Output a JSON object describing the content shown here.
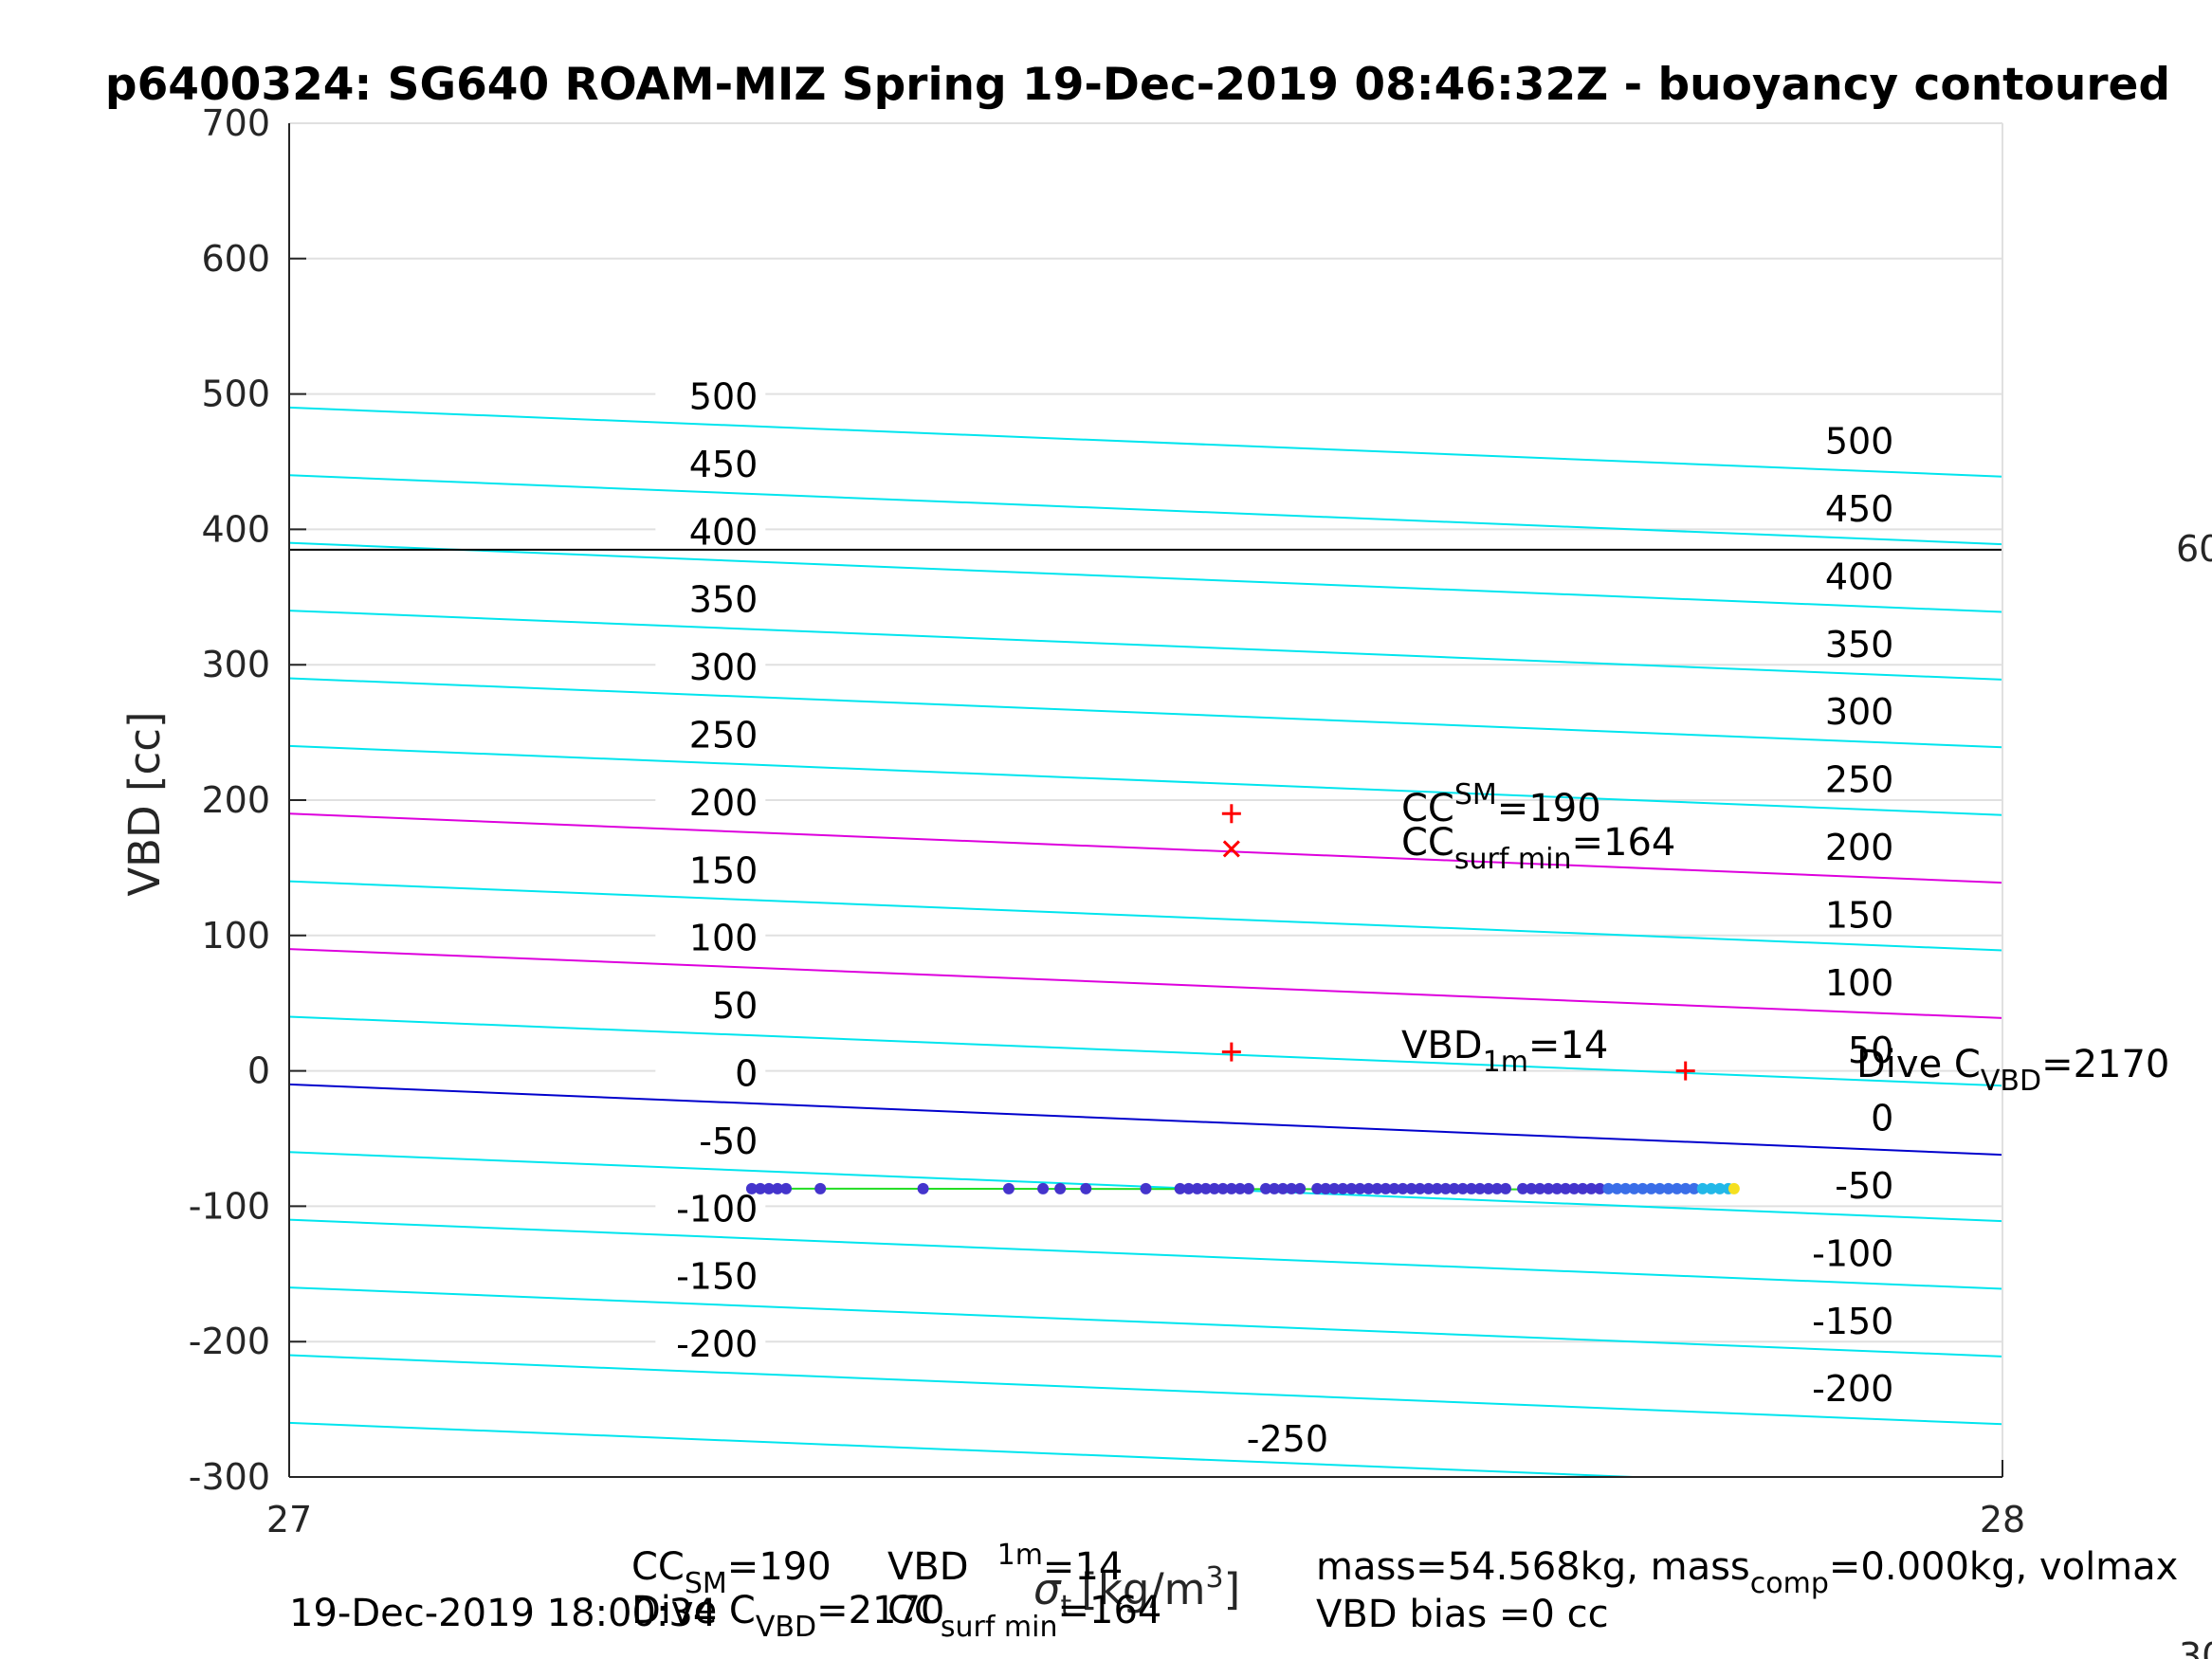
{
  "chart_data": {
    "type": "line",
    "title": "p6400324: SG640 ROAM-MIZ Spring 19-Dec-2019 08:46:32Z - buoyancy contoured",
    "ylabel": "VBD [cc]",
    "xlabel": "σ_t [kg/m^3]",
    "xlabel_parts": {
      "sigma": "σ",
      "sub": "t",
      "units": "[kg/m",
      "sup": "3",
      "close": "]"
    },
    "xlim": [
      27,
      28
    ],
    "ylim": [
      -300,
      700
    ],
    "x_ticks": [
      "27",
      "28"
    ],
    "y_ticks": [
      "-300",
      "-200",
      "-100",
      "0",
      "100",
      "200",
      "300",
      "400",
      "500",
      "600",
      "700"
    ],
    "grid": true,
    "contour_slope_per_unit_sigma": -51,
    "contours": {
      "color": "#00e5ee",
      "values_at_x27": [
        -210,
        -160,
        -110,
        -60,
        40,
        140,
        240,
        290,
        340,
        390,
        440,
        490
      ],
      "left_labels": [
        {
          "text": "500",
          "value": 500
        },
        {
          "text": "450",
          "value": 450
        },
        {
          "text": "400",
          "value": 400
        },
        {
          "text": "350",
          "value": 350
        },
        {
          "text": "300",
          "value": 300
        },
        {
          "text": "250",
          "value": 250
        },
        {
          "text": "200",
          "value": 200
        },
        {
          "text": "150",
          "value": 150
        },
        {
          "text": "100",
          "value": 100
        },
        {
          "text": "50",
          "value": 50
        },
        {
          "text": "0",
          "value": 0
        },
        {
          "text": "-50",
          "value": -50
        },
        {
          "text": "-100",
          "value": -100
        },
        {
          "text": "-150",
          "value": -150
        },
        {
          "text": "-200",
          "value": -200
        }
      ],
      "right_labels": [
        {
          "text": "500",
          "value": 500
        },
        {
          "text": "450",
          "value": 450
        },
        {
          "text": "400",
          "value": 400
        },
        {
          "text": "350",
          "value": 350
        },
        {
          "text": "300",
          "value": 300
        },
        {
          "text": "250",
          "value": 250
        },
        {
          "text": "200",
          "value": 200
        },
        {
          "text": "150",
          "value": 150
        },
        {
          "text": "100",
          "value": 100
        },
        {
          "text": "50",
          "value": 50
        },
        {
          "text": "0",
          "value": 0
        },
        {
          "text": "-50",
          "value": -50
        },
        {
          "text": "-100",
          "value": -100
        },
        {
          "text": "-150",
          "value": -150
        },
        {
          "text": "-200",
          "value": -200
        }
      ],
      "bottom_label": {
        "text": "-250",
        "value": -250
      }
    },
    "magenta_lines": {
      "color": "#dd00dd",
      "values_at_x27": [
        190,
        90
      ]
    },
    "zero_buoyancy_line": {
      "color": "#0000cc",
      "value_at_x27": -10,
      "value_at_x28": -62
    },
    "horizontal_line": {
      "color": "#000000",
      "y": 385,
      "right_label": "60"
    },
    "markers": [
      {
        "symbol": "+",
        "x": 27.55,
        "y": 190,
        "color": "#ff0000"
      },
      {
        "symbol": "x",
        "x": 27.55,
        "y": 164,
        "color": "#ff0000"
      },
      {
        "symbol": "+",
        "x": 27.55,
        "y": 14,
        "color": "#ff0000"
      },
      {
        "symbol": "+",
        "x": 27.815,
        "y": 0,
        "color": "#ff0000"
      }
    ],
    "annotations": {
      "cc_sm": {
        "base": "CC",
        "sup": "SM",
        "rest": "=190"
      },
      "cc_surf_min": {
        "base": "CC",
        "sub": "surf min",
        "rest": "=164"
      },
      "vbd_1m": {
        "base": "VBD",
        "sub": "1m",
        "rest": "=14"
      },
      "dive_c_vbd": {
        "base": "Dive C",
        "sub": "VBD",
        "rest": "=2170"
      }
    },
    "samples": {
      "y": -87,
      "x": [
        27.27,
        27.275,
        27.28,
        27.285,
        27.29,
        27.31,
        27.37,
        27.42,
        27.44,
        27.45,
        27.465,
        27.5,
        27.52,
        27.525,
        27.53,
        27.535,
        27.54,
        27.545,
        27.55,
        27.555,
        27.56,
        27.57,
        27.575,
        27.58,
        27.585,
        27.59,
        27.6,
        27.605,
        27.61,
        27.615,
        27.62,
        27.625,
        27.63,
        27.635,
        27.64,
        27.645,
        27.65,
        27.655,
        27.66,
        27.665,
        27.67,
        27.675,
        27.68,
        27.685,
        27.69,
        27.695,
        27.7,
        27.705,
        27.71,
        27.72,
        27.725,
        27.73,
        27.735,
        27.74,
        27.745,
        27.75,
        27.755,
        27.76,
        27.765,
        27.77,
        27.775,
        27.78,
        27.785,
        27.79,
        27.795,
        27.8,
        27.805,
        27.81,
        27.815,
        27.82,
        27.825,
        27.83,
        27.835,
        27.84
      ],
      "fit_line_color": "#22dd22"
    }
  },
  "footer": {
    "timestamp": "19-Dec-2019 18:00:34",
    "cc_sm": {
      "base": "CC",
      "sup": "SM",
      "rest": "=190"
    },
    "dive_c_vbd": {
      "base": "Dive C",
      "sub": "VBD",
      "rest": "=2170"
    },
    "vbd_1m": {
      "base": "VBD",
      "sub": "1m",
      "rest": "=14"
    },
    "cc_surf_min": {
      "base": "CC",
      "sub": "surf min",
      "rest": "=164"
    },
    "mass_line": {
      "a": "mass=54.568kg, mass",
      "sub": "comp",
      "b": "=0.000kg, volmax"
    },
    "vbd_bias": "VBD bias =0 cc",
    "corner_fragment": "30"
  }
}
